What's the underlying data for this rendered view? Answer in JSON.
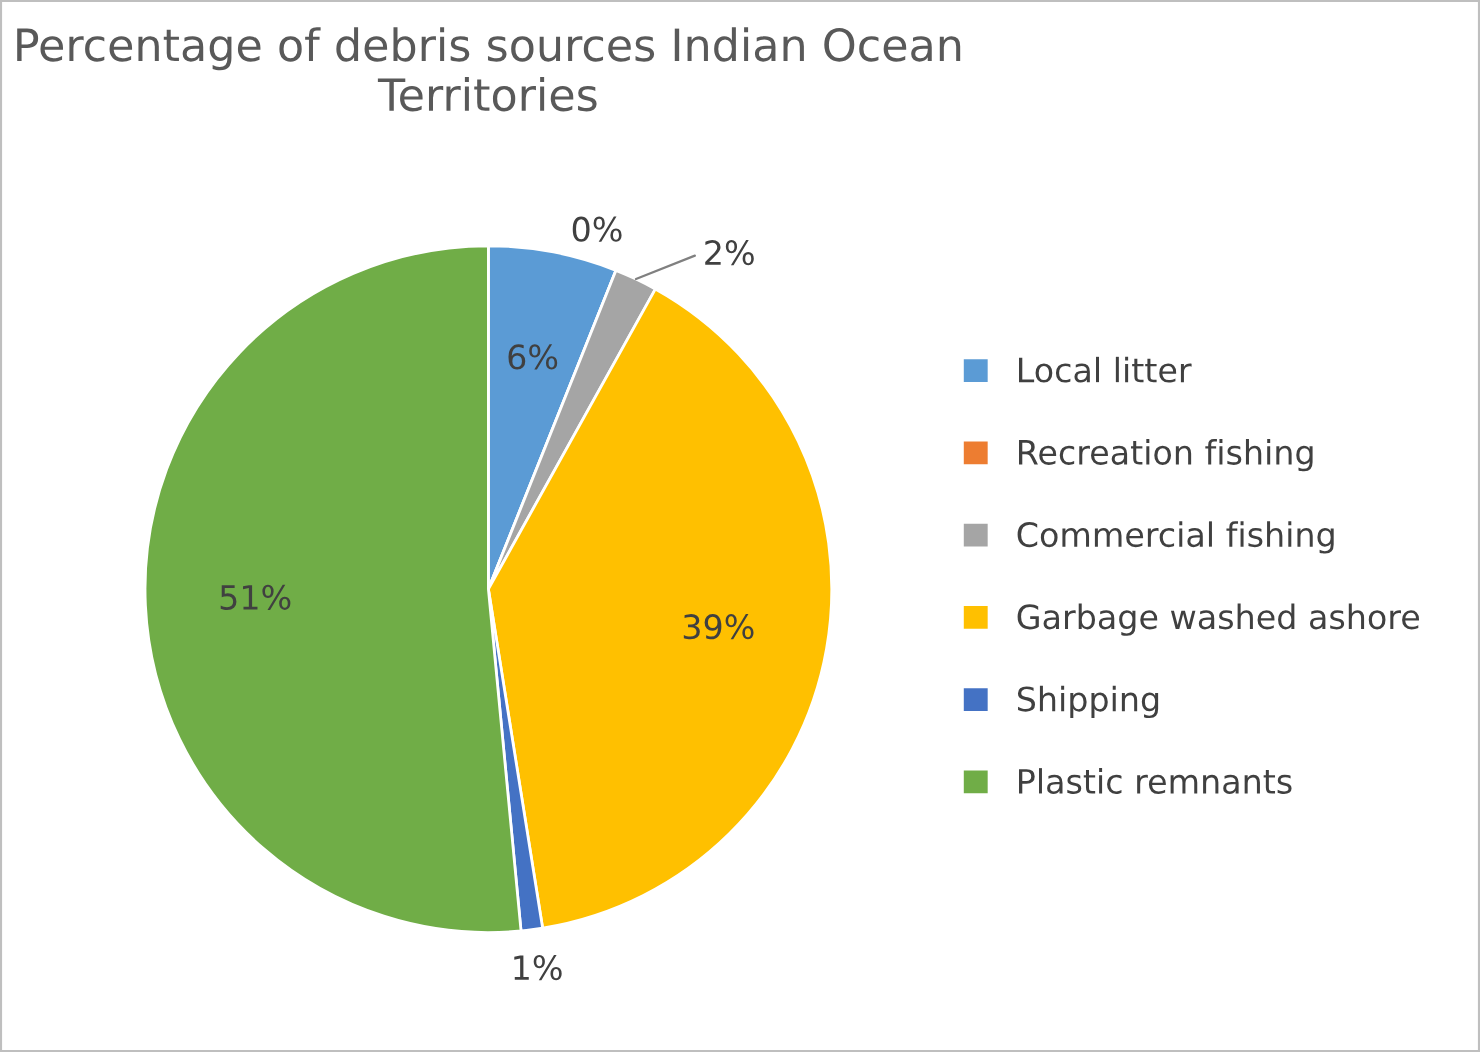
{
  "chart_data": {
    "type": "pie",
    "title": "Percentage of debris sources Indian Ocean Territories",
    "categories": [
      "Local litter",
      "Recreation fishing",
      "Commercial fishing",
      "Garbage washed ashore",
      "Shipping",
      "Plastic remnants"
    ],
    "values": [
      6,
      0,
      2,
      39,
      1,
      51
    ],
    "colors": [
      "#5b9bd5",
      "#ed7d31",
      "#a5a5a5",
      "#ffc000",
      "#4472c4",
      "#70ad47"
    ],
    "value_labels": [
      "6%",
      "0%",
      "2%",
      "39%",
      "1%",
      "51%"
    ],
    "legend": "right"
  }
}
